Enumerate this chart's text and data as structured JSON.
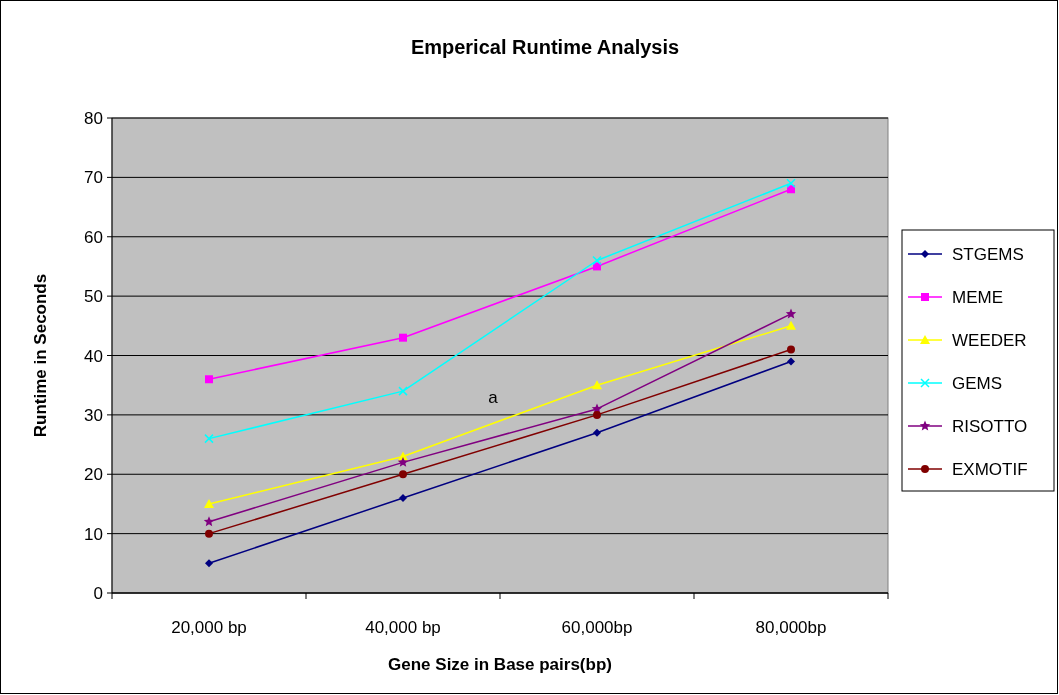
{
  "chart_data": {
    "type": "line",
    "title": "Emperical Runtime Analysis",
    "xlabel": "Gene Size in Base pairs(bp)",
    "ylabel": "Runtime in Seconds",
    "categories": [
      "20,000 bp",
      "40,000 bp",
      "60,000bp",
      "80,000bp"
    ],
    "series": [
      {
        "name": "STGEMS",
        "color": "#000080",
        "marker": "diamond",
        "values": [
          5,
          16,
          27,
          39
        ]
      },
      {
        "name": "MEME",
        "color": "#ff00ff",
        "marker": "square",
        "values": [
          36,
          43,
          55,
          68
        ]
      },
      {
        "name": "WEEDER",
        "color": "#ffff00",
        "marker": "triangle",
        "values": [
          15,
          23,
          35,
          45
        ]
      },
      {
        "name": "GEMS",
        "color": "#00ffff",
        "marker": "cross",
        "values": [
          26,
          34,
          56,
          69
        ]
      },
      {
        "name": "RISOTTO",
        "color": "#800080",
        "marker": "star",
        "values": [
          12,
          22,
          31,
          47
        ]
      },
      {
        "name": "EXMOTIF",
        "color": "#800000",
        "marker": "circle",
        "values": [
          10,
          20,
          30,
          41
        ]
      }
    ],
    "ylim": [
      0,
      80
    ],
    "yticks": [
      0,
      10,
      20,
      30,
      40,
      50,
      60,
      70,
      80
    ],
    "grid": "y",
    "legend": "right",
    "annotations": [
      "a"
    ]
  }
}
